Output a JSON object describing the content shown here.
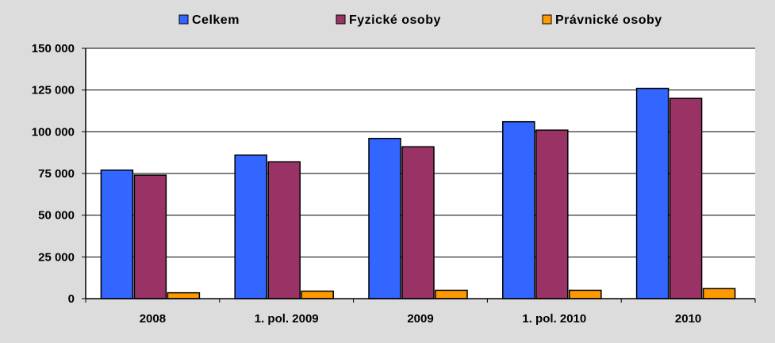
{
  "chart_data": {
    "type": "bar",
    "title": "",
    "xlabel": "",
    "ylabel": "",
    "categories": [
      "2008",
      "1. pol. 2009",
      "2009",
      "1. pol. 2010",
      "2010"
    ],
    "series": [
      {
        "name": "Celkem",
        "color": "#3366ff",
        "values": [
          77000,
          86000,
          96000,
          106000,
          126000
        ]
      },
      {
        "name": "Fyzické osoby",
        "color": "#993366",
        "values": [
          74000,
          82000,
          91000,
          101000,
          120000
        ]
      },
      {
        "name": "Právnické osoby",
        "color": "#ff9900",
        "values": [
          3500,
          4500,
          5000,
          5000,
          6000
        ]
      }
    ],
    "ylim": [
      0,
      150000
    ],
    "yticks": [
      0,
      25000,
      50000,
      75000,
      100000,
      125000,
      150000
    ],
    "ytick_labels": [
      "0",
      "25 000",
      "50 000",
      "75 000",
      "100 000",
      "125 000",
      "150 000"
    ],
    "grid": true,
    "legend_position": "top-center",
    "plot_background": "#ffffff"
  }
}
